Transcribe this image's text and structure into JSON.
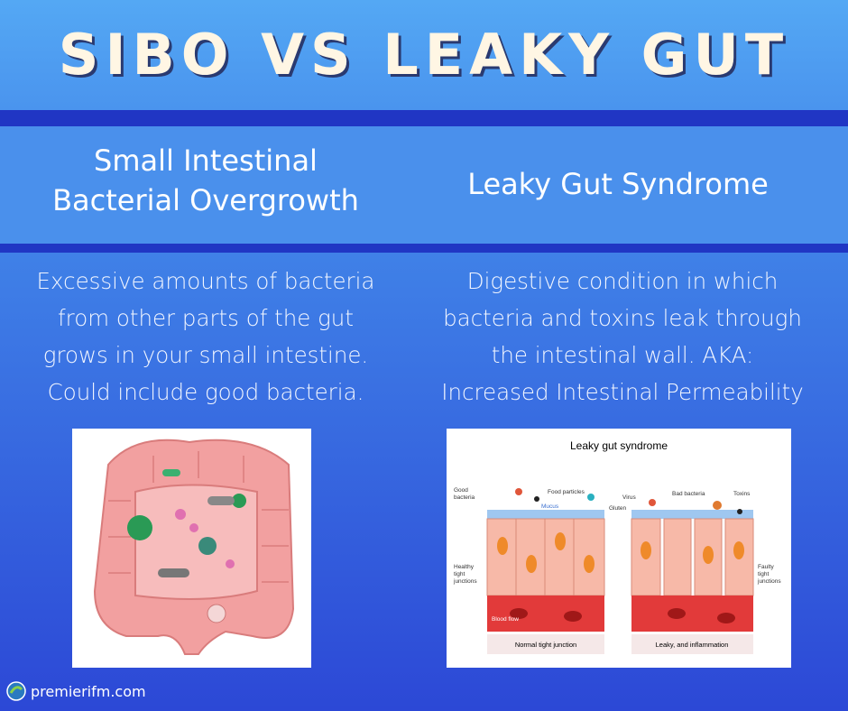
{
  "header": {
    "title": "SIBO VS LEAKY GUT"
  },
  "columns": [
    {
      "heading": [
        "Small Intestinal",
        "Bacterial Overgrowth"
      ],
      "description": [
        "Excessive amounts of bacteria",
        "from other parts of the gut",
        "grows in your small intestine.",
        "Could include good bacteria."
      ]
    },
    {
      "heading": [
        "Leaky Gut Syndrome"
      ],
      "description": [
        "Digestive condition in which",
        "bacteria and toxins leak through",
        "the intestinal wall. AKA:",
        "Increased Intestinal Permeability"
      ]
    }
  ],
  "diagram": {
    "title": "Leaky gut syndrome",
    "labels": {
      "good_bacteria": [
        "Good",
        "bacteria"
      ],
      "food_particles": "Food particles",
      "mucus": "Mucus",
      "healthy_junctions": [
        "Healthy",
        "tight",
        "junctions"
      ],
      "blood_flow": "Blood flow",
      "virus": "Virus",
      "bad_bacteria": "Bad bacteria",
      "toxins": "Toxins",
      "gluten": "Gluten",
      "faulty_junctions": [
        "Faulty",
        "tight",
        "junctions"
      ]
    },
    "captions": [
      "Normal tight junction",
      "Leaky, and inflammation"
    ]
  },
  "footer": {
    "site": "premierifm.com"
  }
}
